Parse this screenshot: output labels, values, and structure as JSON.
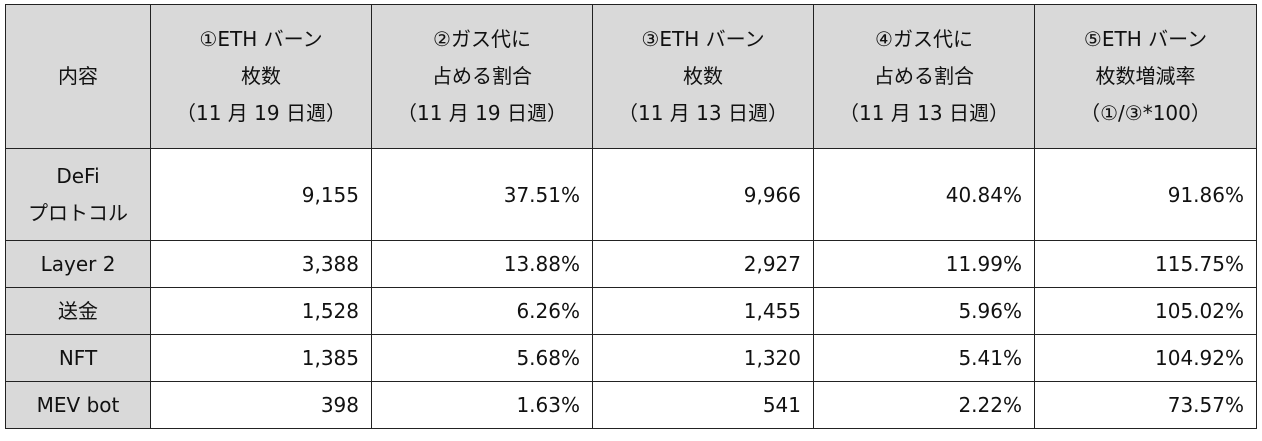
{
  "table": {
    "header": [
      [
        "内容"
      ],
      [
        "①ETH バーン",
        "枚数",
        "（11 月 19 日週）"
      ],
      [
        "②ガス代に",
        "占める割合",
        "（11 月 19 日週）"
      ],
      [
        "③ETH バーン",
        "枚数",
        "（11 月 13 日週）"
      ],
      [
        "④ガス代に",
        "占める割合",
        "（11 月 13 日週）"
      ],
      [
        "⑤ETH バーン",
        "枚数増減率",
        "（①/③*100）"
      ]
    ],
    "rows": [
      [
        [
          "DeFi",
          "プロトコル"
        ],
        "9,155",
        "37.51%",
        "9,966",
        "40.84%",
        "91.86%"
      ],
      [
        [
          "Layer 2"
        ],
        "3,388",
        "13.88%",
        "2,927",
        "11.99%",
        "115.75%"
      ],
      [
        [
          "送金"
        ],
        "1,528",
        "6.26%",
        "1,455",
        "5.96%",
        "105.02%"
      ],
      [
        [
          "NFT"
        ],
        "1,385",
        "5.68%",
        "1,320",
        "5.41%",
        "104.92%"
      ],
      [
        [
          "MEV bot"
        ],
        "398",
        "1.63%",
        "541",
        "2.22%",
        "73.57%"
      ]
    ]
  }
}
